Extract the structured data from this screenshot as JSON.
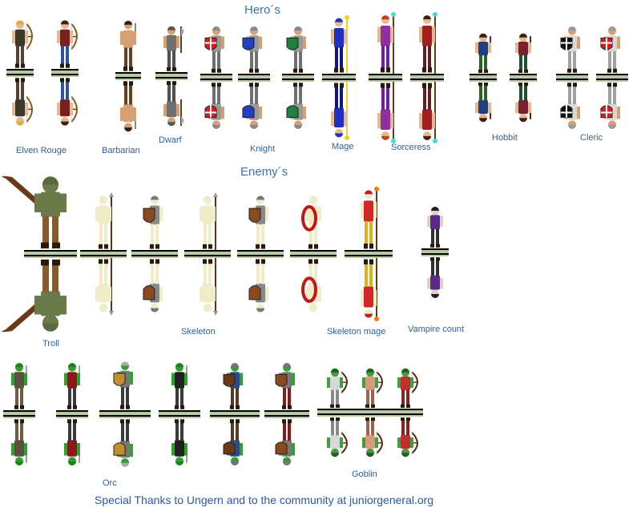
{
  "sheet": {
    "heroes_title": "Hero´s",
    "enemies_title": "Enemy´s",
    "footer": "Special Thanks to Ungern and to the community at juniorgeneral.org"
  },
  "labels": {
    "elven_rouge": "Elven Rouge",
    "barbarian": "Barbarian",
    "dwarf": "Dwarf",
    "knight": "Knight",
    "mage": "Mage",
    "sorceress": "Sorceress",
    "hobbit": "Hobbit",
    "cleric": "Cleric",
    "troll": "Troll",
    "skeleton": "Skeleton",
    "skeleton_mage": "Skeleton mage",
    "vampire_count": "Vampire count",
    "orc": "Orc",
    "goblin": "Goblin"
  },
  "colors": {
    "title_blue": "#3b6fb6",
    "label_blue": "#2f5f9f",
    "base_dark": "#000000",
    "base_light": "#b8c7a4"
  },
  "icons": {
    "elven": "archer-figure-icon",
    "barbarian": "barbarian-figure-icon",
    "dwarf": "dwarf-figure-icon",
    "knight": "knight-figure-icon",
    "mage": "mage-figure-icon",
    "sorceress": "sorceress-figure-icon",
    "hobbit": "hobbit-figure-icon",
    "cleric": "cleric-figure-icon",
    "troll": "troll-figure-icon",
    "skeleton": "skeleton-figure-icon",
    "vampire": "vampire-figure-icon",
    "orc": "orc-figure-icon",
    "goblin": "goblin-figure-icon"
  }
}
